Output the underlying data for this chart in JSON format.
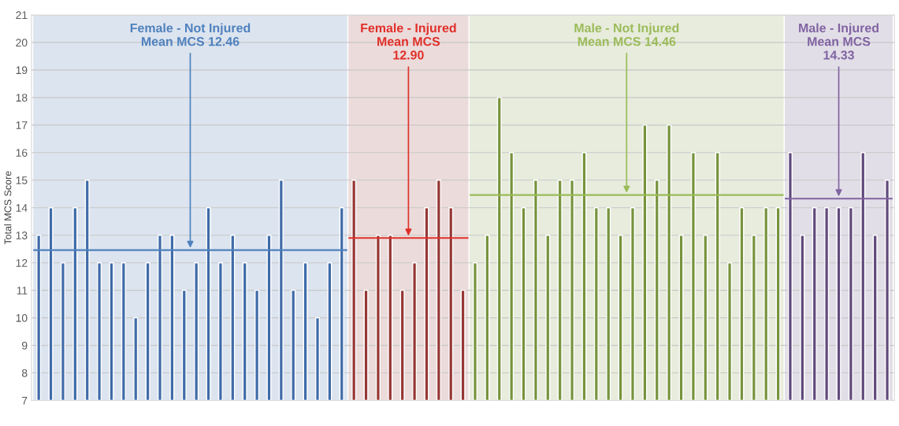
{
  "chart_data": {
    "type": "bar",
    "ylabel": "Total MCS Score",
    "categories": [
      null,
      null,
      null,
      null,
      null,
      null,
      null,
      null,
      null,
      null,
      null,
      null,
      null,
      null,
      null,
      null,
      null,
      null,
      null,
      null,
      null,
      null,
      null,
      null,
      null,
      null,
      null,
      null,
      null,
      null,
      null,
      null,
      null,
      null,
      null,
      null,
      null,
      null,
      null,
      null,
      null,
      null,
      null,
      null,
      null,
      null,
      null,
      null,
      null,
      null,
      null,
      null,
      null,
      null,
      null,
      null,
      null,
      null,
      null,
      null,
      null,
      null,
      null,
      null,
      null,
      null,
      null,
      null,
      null,
      null,
      null
    ],
    "series": [
      {
        "color": "#3f6ba8",
        "values": [
          13,
          14,
          12,
          14,
          15,
          12,
          12,
          12,
          10,
          12,
          13,
          13,
          11,
          12,
          14,
          12,
          13,
          12,
          11,
          13,
          15,
          11,
          12,
          10,
          12,
          14,
          null,
          null,
          null,
          null,
          null,
          null,
          null,
          null,
          null,
          null,
          null,
          null,
          null,
          null,
          null,
          null,
          null,
          null,
          null,
          null,
          null,
          null,
          null,
          null,
          null,
          null,
          null,
          null,
          null,
          null,
          null,
          null,
          null,
          null,
          null,
          null,
          null,
          null,
          null,
          null,
          null,
          null,
          null,
          null,
          null
        ]
      },
      {
        "color": "#953735",
        "values": [
          null,
          null,
          null,
          null,
          null,
          null,
          null,
          null,
          null,
          null,
          null,
          null,
          null,
          null,
          null,
          null,
          null,
          null,
          null,
          null,
          null,
          null,
          null,
          null,
          null,
          null,
          15,
          11,
          13,
          13,
          11,
          12,
          14,
          15,
          14,
          11,
          null,
          null,
          null,
          null,
          null,
          null,
          null,
          null,
          null,
          null,
          null,
          null,
          null,
          null,
          null,
          null,
          null,
          null,
          null,
          null,
          null,
          null,
          null,
          null,
          null,
          null,
          null,
          null,
          null,
          null,
          null,
          null,
          null,
          null,
          null
        ]
      },
      {
        "color": "#77933c",
        "values": [
          null,
          null,
          null,
          null,
          null,
          null,
          null,
          null,
          null,
          null,
          null,
          null,
          null,
          null,
          null,
          null,
          null,
          null,
          null,
          null,
          null,
          null,
          null,
          null,
          null,
          null,
          null,
          null,
          null,
          null,
          null,
          null,
          null,
          null,
          null,
          null,
          12,
          13,
          18,
          16,
          14,
          15,
          13,
          15,
          15,
          16,
          14,
          14,
          13,
          14,
          17,
          15,
          17,
          13,
          16,
          13,
          16,
          12,
          14,
          13,
          14,
          14,
          null,
          null,
          null,
          null,
          null,
          null,
          null,
          null,
          null
        ]
      },
      {
        "color": "#604a7b",
        "values": [
          null,
          null,
          null,
          null,
          null,
          null,
          null,
          null,
          null,
          null,
          null,
          null,
          null,
          null,
          null,
          null,
          null,
          null,
          null,
          null,
          null,
          null,
          null,
          null,
          null,
          null,
          null,
          null,
          null,
          null,
          null,
          null,
          null,
          null,
          null,
          null,
          null,
          null,
          null,
          null,
          null,
          null,
          null,
          null,
          null,
          null,
          null,
          null,
          null,
          null,
          null,
          null,
          null,
          null,
          null,
          null,
          null,
          null,
          null,
          null,
          null,
          null,
          16,
          13,
          14,
          14,
          14,
          14,
          16,
          13,
          15
        ]
      }
    ],
    "ref_lines": [
      {
        "axis": "y",
        "value": 12.46,
        "color": "#4f81bd",
        "label": "Female - Not Injured\nMean MCS 12.46"
      },
      {
        "axis": "y",
        "value": 12.9,
        "color": "#e0302a",
        "label": "Female - Injured\nMean MCS\n12.90"
      },
      {
        "axis": "y",
        "value": 14.46,
        "color": "#9bbb59",
        "label": "Male - Not Injured\nMean MCS 14.46"
      },
      {
        "axis": "y",
        "value": 14.33,
        "color": "#8064a2",
        "label": "Male - Injured\nMean MCS\n14.33"
      }
    ],
    "ylim": [
      7,
      21
    ],
    "yticks": [
      7,
      8,
      9,
      10,
      11,
      12,
      13,
      14,
      15,
      16,
      17,
      18,
      19,
      20,
      21
    ],
    "grid": "y"
  }
}
